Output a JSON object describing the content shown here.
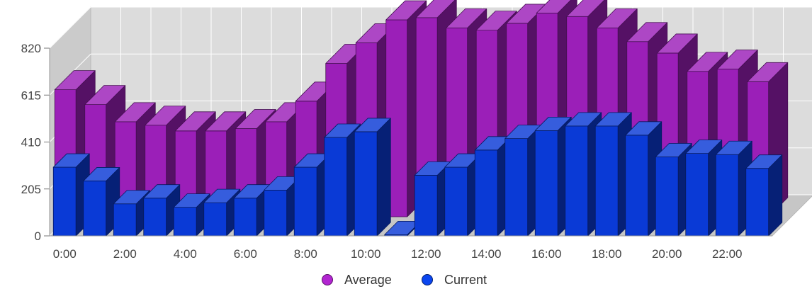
{
  "chart_data": {
    "type": "bar",
    "title": "",
    "xlabel": "",
    "ylabel": "",
    "ylim": [
      0,
      820
    ],
    "yticks": [
      0,
      205,
      410,
      615,
      820
    ],
    "grid": true,
    "three_d": true,
    "legend_position": "bottom",
    "categories": [
      "0:00",
      "1:00",
      "2:00",
      "3:00",
      "4:00",
      "5:00",
      "6:00",
      "7:00",
      "8:00",
      "9:00",
      "10:00",
      "11:00",
      "12:00",
      "13:00",
      "14:00",
      "15:00",
      "16:00",
      "17:00",
      "18:00",
      "19:00",
      "20:00",
      "21:00",
      "22:00",
      "23:00"
    ],
    "xtick_labels": [
      "0:00",
      "2:00",
      "4:00",
      "6:00",
      "8:00",
      "10:00",
      "12:00",
      "14:00",
      "16:00",
      "18:00",
      "20:00",
      "22:00"
    ],
    "series": [
      {
        "name": "Average",
        "color": "#9b1fb8",
        "values": [
          555,
          490,
          415,
          400,
          375,
          375,
          385,
          415,
          505,
          670,
          760,
          860,
          870,
          825,
          815,
          845,
          890,
          875,
          825,
          765,
          715,
          635,
          645,
          590
        ]
      },
      {
        "name": "Current",
        "color": "#0a3ad6",
        "values": [
          300,
          240,
          140,
          165,
          125,
          145,
          165,
          200,
          300,
          430,
          455,
          5,
          265,
          300,
          375,
          425,
          460,
          480,
          480,
          440,
          345,
          360,
          355,
          295
        ]
      }
    ]
  }
}
